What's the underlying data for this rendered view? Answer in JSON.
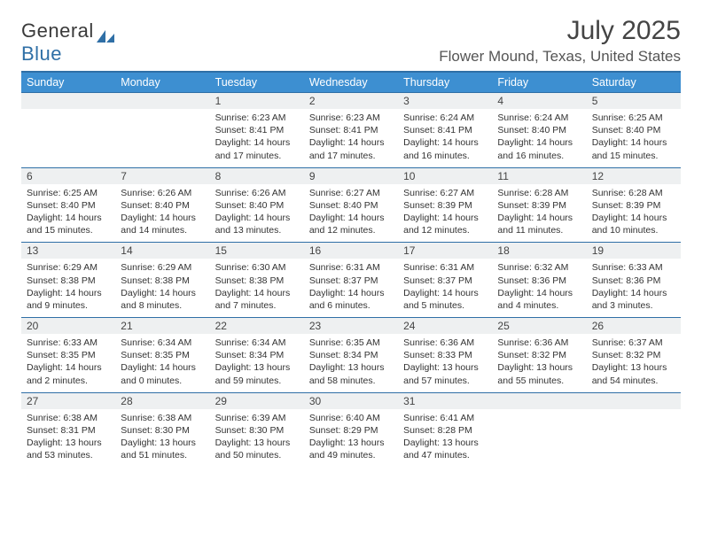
{
  "logo": {
    "textA": "General",
    "textB": "Blue"
  },
  "title": "July 2025",
  "location": "Flower Mound, Texas, United States",
  "colors": {
    "header_bg": "#3d8fd1",
    "header_text": "#ffffff",
    "rule": "#2f6fa6",
    "daynum_bg": "#eef0f1",
    "body_text": "#333333",
    "logo_blue": "#2f6fa6"
  },
  "typography": {
    "title_fontsize": 30,
    "location_fontsize": 17,
    "dayheader_fontsize": 12.5,
    "daynum_fontsize": 12,
    "detail_fontsize": 10.5
  },
  "columns": [
    "Sunday",
    "Monday",
    "Tuesday",
    "Wednesday",
    "Thursday",
    "Friday",
    "Saturday"
  ],
  "weeks": [
    [
      null,
      null,
      {
        "n": "1",
        "sr": "Sunrise: 6:23 AM",
        "ss": "Sunset: 8:41 PM",
        "dl": "Daylight: 14 hours and 17 minutes."
      },
      {
        "n": "2",
        "sr": "Sunrise: 6:23 AM",
        "ss": "Sunset: 8:41 PM",
        "dl": "Daylight: 14 hours and 17 minutes."
      },
      {
        "n": "3",
        "sr": "Sunrise: 6:24 AM",
        "ss": "Sunset: 8:41 PM",
        "dl": "Daylight: 14 hours and 16 minutes."
      },
      {
        "n": "4",
        "sr": "Sunrise: 6:24 AM",
        "ss": "Sunset: 8:40 PM",
        "dl": "Daylight: 14 hours and 16 minutes."
      },
      {
        "n": "5",
        "sr": "Sunrise: 6:25 AM",
        "ss": "Sunset: 8:40 PM",
        "dl": "Daylight: 14 hours and 15 minutes."
      }
    ],
    [
      {
        "n": "6",
        "sr": "Sunrise: 6:25 AM",
        "ss": "Sunset: 8:40 PM",
        "dl": "Daylight: 14 hours and 15 minutes."
      },
      {
        "n": "7",
        "sr": "Sunrise: 6:26 AM",
        "ss": "Sunset: 8:40 PM",
        "dl": "Daylight: 14 hours and 14 minutes."
      },
      {
        "n": "8",
        "sr": "Sunrise: 6:26 AM",
        "ss": "Sunset: 8:40 PM",
        "dl": "Daylight: 14 hours and 13 minutes."
      },
      {
        "n": "9",
        "sr": "Sunrise: 6:27 AM",
        "ss": "Sunset: 8:40 PM",
        "dl": "Daylight: 14 hours and 12 minutes."
      },
      {
        "n": "10",
        "sr": "Sunrise: 6:27 AM",
        "ss": "Sunset: 8:39 PM",
        "dl": "Daylight: 14 hours and 12 minutes."
      },
      {
        "n": "11",
        "sr": "Sunrise: 6:28 AM",
        "ss": "Sunset: 8:39 PM",
        "dl": "Daylight: 14 hours and 11 minutes."
      },
      {
        "n": "12",
        "sr": "Sunrise: 6:28 AM",
        "ss": "Sunset: 8:39 PM",
        "dl": "Daylight: 14 hours and 10 minutes."
      }
    ],
    [
      {
        "n": "13",
        "sr": "Sunrise: 6:29 AM",
        "ss": "Sunset: 8:38 PM",
        "dl": "Daylight: 14 hours and 9 minutes."
      },
      {
        "n": "14",
        "sr": "Sunrise: 6:29 AM",
        "ss": "Sunset: 8:38 PM",
        "dl": "Daylight: 14 hours and 8 minutes."
      },
      {
        "n": "15",
        "sr": "Sunrise: 6:30 AM",
        "ss": "Sunset: 8:38 PM",
        "dl": "Daylight: 14 hours and 7 minutes."
      },
      {
        "n": "16",
        "sr": "Sunrise: 6:31 AM",
        "ss": "Sunset: 8:37 PM",
        "dl": "Daylight: 14 hours and 6 minutes."
      },
      {
        "n": "17",
        "sr": "Sunrise: 6:31 AM",
        "ss": "Sunset: 8:37 PM",
        "dl": "Daylight: 14 hours and 5 minutes."
      },
      {
        "n": "18",
        "sr": "Sunrise: 6:32 AM",
        "ss": "Sunset: 8:36 PM",
        "dl": "Daylight: 14 hours and 4 minutes."
      },
      {
        "n": "19",
        "sr": "Sunrise: 6:33 AM",
        "ss": "Sunset: 8:36 PM",
        "dl": "Daylight: 14 hours and 3 minutes."
      }
    ],
    [
      {
        "n": "20",
        "sr": "Sunrise: 6:33 AM",
        "ss": "Sunset: 8:35 PM",
        "dl": "Daylight: 14 hours and 2 minutes."
      },
      {
        "n": "21",
        "sr": "Sunrise: 6:34 AM",
        "ss": "Sunset: 8:35 PM",
        "dl": "Daylight: 14 hours and 0 minutes."
      },
      {
        "n": "22",
        "sr": "Sunrise: 6:34 AM",
        "ss": "Sunset: 8:34 PM",
        "dl": "Daylight: 13 hours and 59 minutes."
      },
      {
        "n": "23",
        "sr": "Sunrise: 6:35 AM",
        "ss": "Sunset: 8:34 PM",
        "dl": "Daylight: 13 hours and 58 minutes."
      },
      {
        "n": "24",
        "sr": "Sunrise: 6:36 AM",
        "ss": "Sunset: 8:33 PM",
        "dl": "Daylight: 13 hours and 57 minutes."
      },
      {
        "n": "25",
        "sr": "Sunrise: 6:36 AM",
        "ss": "Sunset: 8:32 PM",
        "dl": "Daylight: 13 hours and 55 minutes."
      },
      {
        "n": "26",
        "sr": "Sunrise: 6:37 AM",
        "ss": "Sunset: 8:32 PM",
        "dl": "Daylight: 13 hours and 54 minutes."
      }
    ],
    [
      {
        "n": "27",
        "sr": "Sunrise: 6:38 AM",
        "ss": "Sunset: 8:31 PM",
        "dl": "Daylight: 13 hours and 53 minutes."
      },
      {
        "n": "28",
        "sr": "Sunrise: 6:38 AM",
        "ss": "Sunset: 8:30 PM",
        "dl": "Daylight: 13 hours and 51 minutes."
      },
      {
        "n": "29",
        "sr": "Sunrise: 6:39 AM",
        "ss": "Sunset: 8:30 PM",
        "dl": "Daylight: 13 hours and 50 minutes."
      },
      {
        "n": "30",
        "sr": "Sunrise: 6:40 AM",
        "ss": "Sunset: 8:29 PM",
        "dl": "Daylight: 13 hours and 49 minutes."
      },
      {
        "n": "31",
        "sr": "Sunrise: 6:41 AM",
        "ss": "Sunset: 8:28 PM",
        "dl": "Daylight: 13 hours and 47 minutes."
      },
      null,
      null
    ]
  ]
}
